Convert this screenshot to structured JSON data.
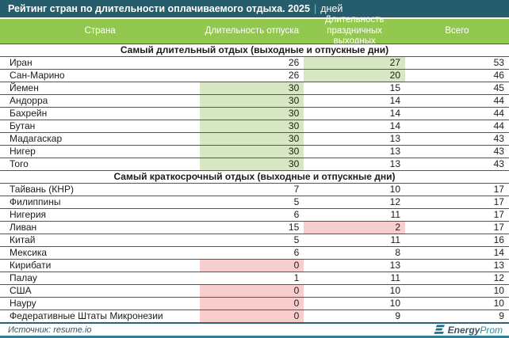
{
  "title": {
    "text": "Рейтинг стран по длительности оплачиваемого отдыха. 2025",
    "separator": "|",
    "unit": "дней"
  },
  "chart_data": {
    "type": "table",
    "title": "Рейтинг стран по длительности оплачиваемого отдыха. 2025 | дней",
    "columns": [
      "Страна",
      "Длительность отпуска",
      "Длительность праздничных выходных",
      "Всего"
    ],
    "sections": [
      {
        "header": "Самый длительный отдых (выходные и отпускные дни)",
        "rows": [
          {
            "country": "Иран",
            "vacation": "26",
            "holidays": "27",
            "total": "53",
            "highlight": {
              "holidays": "green"
            }
          },
          {
            "country": "Сан-Марино",
            "vacation": "26",
            "holidays": "20",
            "total": "46",
            "highlight": {
              "holidays": "green"
            }
          },
          {
            "country": "Йемен",
            "vacation": "30",
            "holidays": "15",
            "total": "45",
            "highlight": {
              "vacation": "green"
            }
          },
          {
            "country": "Андорра",
            "vacation": "30",
            "holidays": "14",
            "total": "44",
            "highlight": {
              "vacation": "green"
            }
          },
          {
            "country": "Бахрейн",
            "vacation": "30",
            "holidays": "14",
            "total": "44",
            "highlight": {
              "vacation": "green"
            }
          },
          {
            "country": "Бутан",
            "vacation": "30",
            "holidays": "14",
            "total": "44",
            "highlight": {
              "vacation": "green"
            }
          },
          {
            "country": "Мадагаскар",
            "vacation": "30",
            "holidays": "13",
            "total": "43",
            "highlight": {
              "vacation": "green"
            }
          },
          {
            "country": "Нигер",
            "vacation": "30",
            "holidays": "13",
            "total": "43",
            "highlight": {
              "vacation": "green"
            }
          },
          {
            "country": "Того",
            "vacation": "30",
            "holidays": "13",
            "total": "43",
            "highlight": {
              "vacation": "green"
            }
          }
        ]
      },
      {
        "header": "Самый краткосрочный отдых (выходные и отпускные дни)",
        "rows": [
          {
            "country": "Тайвань (КНР)",
            "vacation": "7",
            "holidays": "10",
            "total": "17"
          },
          {
            "country": "Филиппины",
            "vacation": "5",
            "holidays": "12",
            "total": "17"
          },
          {
            "country": "Нигерия",
            "vacation": "6",
            "holidays": "11",
            "total": "17"
          },
          {
            "country": "Ливан",
            "vacation": "15",
            "holidays": "2",
            "total": "17",
            "highlight": {
              "holidays": "pink"
            }
          },
          {
            "country": "Китай",
            "vacation": "5",
            "holidays": "11",
            "total": "16"
          },
          {
            "country": "Мексика",
            "vacation": "6",
            "holidays": "8",
            "total": "14"
          },
          {
            "country": "Кирибати",
            "vacation": "0",
            "holidays": "13",
            "total": "13",
            "highlight": {
              "vacation": "pink"
            }
          },
          {
            "country": "Палау",
            "vacation": "1",
            "holidays": "11",
            "total": "12"
          },
          {
            "country": "США",
            "vacation": "0",
            "holidays": "10",
            "total": "10",
            "highlight": {
              "vacation": "pink"
            }
          },
          {
            "country": "Науру",
            "vacation": "0",
            "holidays": "10",
            "total": "10",
            "highlight": {
              "vacation": "pink"
            }
          },
          {
            "country": "Федеративные Штаты Микронезии",
            "vacation": "0",
            "holidays": "9",
            "total": "9",
            "highlight": {
              "vacation": "pink"
            }
          }
        ]
      }
    ]
  },
  "footer": {
    "source": "Источник: resume.io",
    "logo": {
      "bold": "Energy",
      "light": "Prom"
    }
  },
  "colors": {
    "title_bar": "#265d6d",
    "header_green": "#92c84f",
    "highlight_green": "#d7e7c3",
    "highlight_pink": "#f8cdcd",
    "row_border": "#2c6272",
    "bottom_bar": "#2e8094",
    "logo_teal": "#166f82"
  }
}
